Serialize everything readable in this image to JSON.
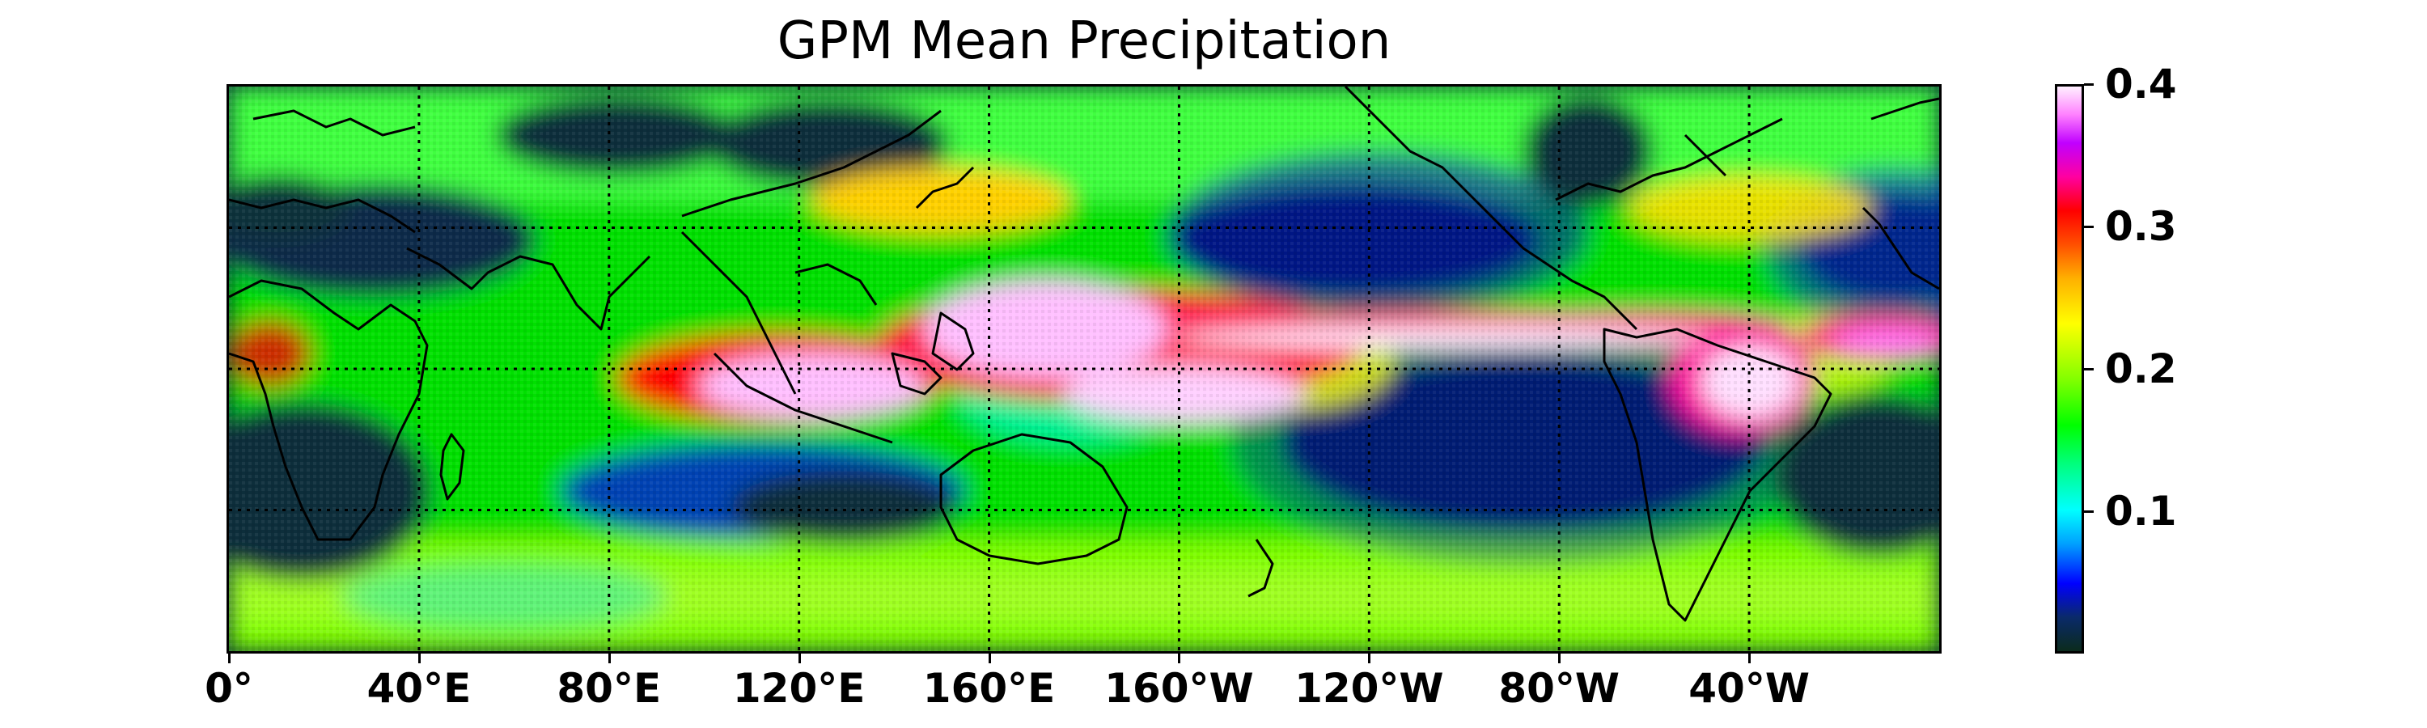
{
  "title": "GPM Mean Precipitation",
  "map": {
    "projection": "equirectangular",
    "lon_range": [
      0,
      360
    ],
    "lat_range": [
      -60,
      60
    ],
    "gridlines": "dotted",
    "grid_lons": [
      40,
      80,
      120,
      160,
      200,
      240,
      280,
      320
    ],
    "grid_lats": [
      -30,
      0,
      30
    ],
    "coastlines": true,
    "colormap": "gist_ncar"
  },
  "x_ticks": [
    "0°",
    "40°E",
    "80°E",
    "120°E",
    "160°E",
    "160°W",
    "120°W",
    "80°W",
    "40°W"
  ],
  "colorbar": {
    "ticks": [
      "0.4",
      "0.3",
      "0.2",
      "0.1"
    ],
    "tick_values": [
      0.4,
      0.3,
      0.2,
      0.1
    ],
    "range": [
      0.0,
      0.4
    ]
  },
  "colors": {
    "dry": "#0b2b1c",
    "low": "#0000ff",
    "moderate": "#00ff00",
    "high": "#ff0000",
    "max": "#fff0ff"
  }
}
